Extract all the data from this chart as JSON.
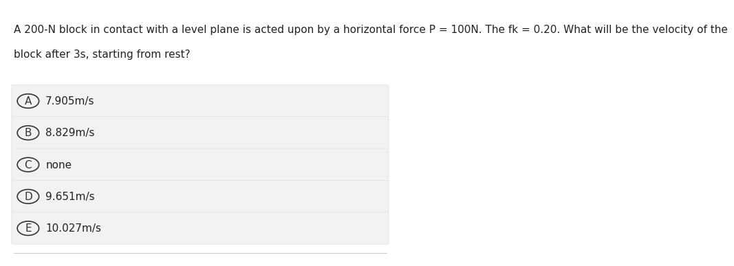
{
  "question_line1": "A 200-N block in contact with a level plane is acted upon by a horizontal force P = 100N. The fk = 0.20. What will be the velocity of the",
  "question_line2": "block after 3s, starting from rest?",
  "options": [
    {
      "label": "A",
      "text": "7.905m/s"
    },
    {
      "label": "B",
      "text": "8.829m/s"
    },
    {
      "label": "C",
      "text": "none"
    },
    {
      "label": "D",
      "text": "9.651m/s"
    },
    {
      "label": "E",
      "text": "10.027m/s"
    }
  ],
  "bg_color": "#ffffff",
  "option_bg_color": "#f2f2f2",
  "option_border_color": "#e0e0e0",
  "text_color": "#222222",
  "circle_color": "#333333",
  "question_fontsize": 11,
  "option_fontsize": 11,
  "label_fontsize": 11
}
